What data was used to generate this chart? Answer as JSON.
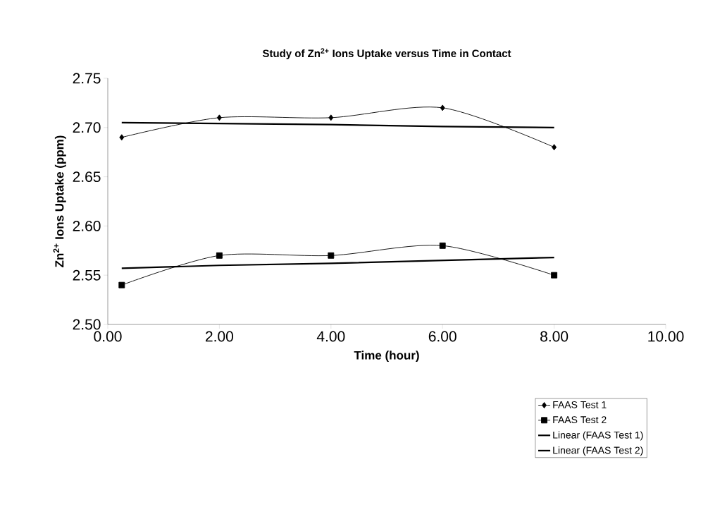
{
  "chart_data": {
    "type": "line",
    "title": "Study of Zn$^{2+}$ Ions Uptake versus Time in Contact",
    "xlabel": "Time (hour)",
    "ylabel": "Zn$^{2+}$ Ions Uptake (ppm)",
    "x": [
      0.25,
      2,
      4,
      6,
      8
    ],
    "series": [
      {
        "name": "FAAS Test 1",
        "color": "#000000",
        "marker": "diamond",
        "values": [
          2.69,
          2.71,
          2.71,
          2.72,
          2.68
        ]
      },
      {
        "name": "FAAS Test 2",
        "color": "#000000",
        "marker": "square",
        "values": [
          2.54,
          2.57,
          2.57,
          2.58,
          2.55
        ]
      },
      {
        "name": "Linear (FAAS Test 1)",
        "color": "#000000",
        "marker": "none",
        "values": [
          2.705,
          2.704,
          2.703,
          2.701,
          2.7
        ]
      },
      {
        "name": "Linear (FAAS Test 2)",
        "color": "#000000",
        "marker": "none",
        "values": [
          2.557,
          2.56,
          2.562,
          2.565,
          2.568
        ]
      }
    ],
    "xlim": [
      0,
      10
    ],
    "ylim": [
      2.5,
      2.75
    ],
    "xticks": [
      {
        "value": 0,
        "label": "0.00"
      },
      {
        "value": 2,
        "label": "2.00"
      },
      {
        "value": 4,
        "label": "4.00"
      },
      {
        "value": 6,
        "label": "6.00"
      },
      {
        "value": 8,
        "label": "8.00"
      },
      {
        "value": 10,
        "label": "10.00"
      }
    ],
    "yticks": [
      {
        "value": 2.5,
        "label": "2.50"
      },
      {
        "value": 2.55,
        "label": "2.55"
      },
      {
        "value": 2.6,
        "label": "2.60"
      },
      {
        "value": 2.65,
        "label": "2.65"
      },
      {
        "value": 2.7,
        "label": "2.70"
      },
      {
        "value": 2.75,
        "label": "2.75"
      }
    ],
    "grid": false,
    "legend": "bottom right",
    "line_style": "solid"
  }
}
